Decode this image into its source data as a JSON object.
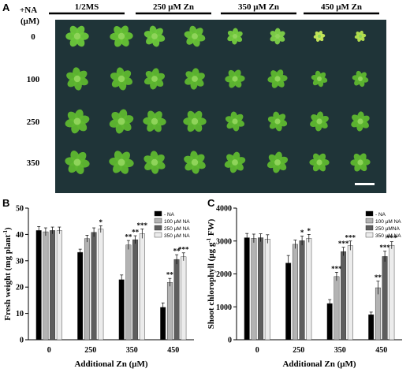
{
  "panel_a": {
    "label": "A",
    "row_header": "+NA",
    "row_unit": "(μM)",
    "columns": [
      "1/2MS",
      "250 μM Zn",
      "350 μM Zn",
      "450 μM Zn"
    ],
    "rows": [
      "0",
      "100",
      "250",
      "350"
    ],
    "background": "#1f3438",
    "plant_color": "#5fb82f"
  },
  "chart_data": [
    {
      "panel_label": "B",
      "type": "bar",
      "categories": [
        "0",
        "250",
        "350",
        "450"
      ],
      "xlabel": "Additional Zn (μM)",
      "ylabel": "Fresh weight (mg plant",
      "ylabel_sup": "-1",
      "ylabel_close": ")",
      "ylim": [
        0,
        50
      ],
      "yticks": [
        0,
        10,
        20,
        30,
        40,
        50
      ],
      "series": [
        {
          "name": "- NA",
          "color": "#000000",
          "values": [
            41.5,
            33.2,
            22.8,
            12.3
          ],
          "errors": [
            1.5,
            1.2,
            1.8,
            1.7
          ],
          "stars": [
            "",
            "",
            "",
            ""
          ]
        },
        {
          "name": "100 μM NA",
          "color": "#b3b3b3",
          "values": [
            41.0,
            38.4,
            36.0,
            21.8
          ],
          "errors": [
            1.5,
            1.3,
            1.7,
            1.5
          ],
          "stars": [
            "",
            "",
            "**",
            "**"
          ]
        },
        {
          "name": "250 μM NA",
          "color": "#5e5e5e",
          "values": [
            41.5,
            40.8,
            38.0,
            30.5
          ],
          "errors": [
            1.3,
            1.7,
            1.5,
            1.8
          ],
          "stars": [
            "",
            "",
            "**",
            "**"
          ]
        },
        {
          "name": "350 μM NA",
          "color": "#ececec",
          "values": [
            41.5,
            42.0,
            40.3,
            31.5
          ],
          "errors": [
            1.3,
            1.3,
            1.8,
            1.5
          ],
          "stars": [
            "",
            "*",
            "***",
            "***"
          ]
        }
      ]
    },
    {
      "panel_label": "C",
      "type": "bar",
      "categories": [
        "0",
        "250",
        "350",
        "450"
      ],
      "xlabel": "Additional Zn (μM)",
      "ylabel": "Shoot chlorophyll (μg g",
      "ylabel_sup": "-1",
      "ylabel_close": " FW)",
      "ylim": [
        0,
        4000
      ],
      "yticks": [
        0,
        1000,
        2000,
        3000,
        4000
      ],
      "series": [
        {
          "name": "- NA",
          "color": "#000000",
          "values": [
            3100,
            2330,
            1100,
            760
          ],
          "errors": [
            130,
            230,
            120,
            80
          ],
          "stars": [
            "",
            "",
            "",
            ""
          ]
        },
        {
          "name": "100 μM NA",
          "color": "#b3b3b3",
          "values": [
            3080,
            2900,
            1920,
            1580
          ],
          "errors": [
            130,
            130,
            130,
            200
          ],
          "stars": [
            "",
            "",
            "***",
            "**"
          ]
        },
        {
          "name": "250 μMNA",
          "color": "#5e5e5e",
          "values": [
            3100,
            3010,
            2680,
            2530
          ],
          "errors": [
            120,
            140,
            130,
            160
          ],
          "stars": [
            "",
            "*",
            "***",
            "***"
          ]
        },
        {
          "name": "350 μM NA",
          "color": "#ececec",
          "values": [
            3060,
            3080,
            2860,
            2870
          ],
          "errors": [
            130,
            120,
            140,
            110
          ],
          "stars": [
            "",
            "*",
            "***",
            "***"
          ]
        }
      ]
    }
  ]
}
